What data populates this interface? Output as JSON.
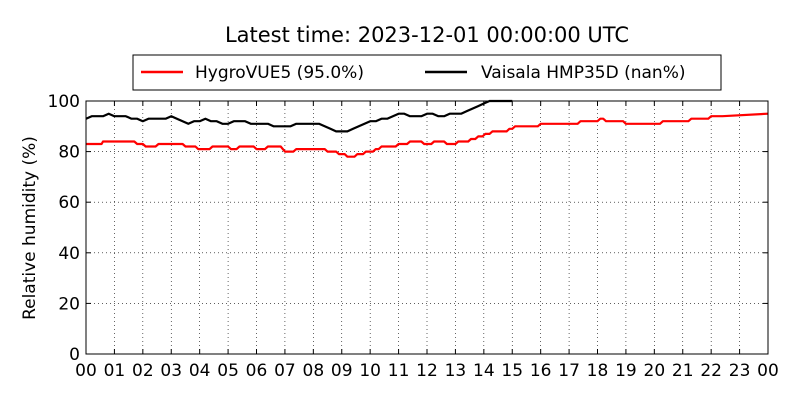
{
  "chart_data": {
    "type": "line",
    "title": "Latest time: 2023-12-01 00:00:00 UTC",
    "xlabel": "",
    "ylabel": "Relative humidity (%)",
    "ylim": [
      0,
      100
    ],
    "xlim": [
      0,
      24
    ],
    "yticks": [
      "0",
      "20",
      "40",
      "60",
      "80",
      "100"
    ],
    "xticks": [
      "00",
      "01",
      "02",
      "03",
      "04",
      "05",
      "06",
      "07",
      "08",
      "09",
      "10",
      "11",
      "12",
      "13",
      "14",
      "15",
      "16",
      "17",
      "18",
      "19",
      "20",
      "21",
      "22",
      "23",
      "00"
    ],
    "grid": true,
    "legend_position": "top",
    "series": [
      {
        "name": "HygroVUE5 (95.0%)",
        "color": "#ff0000",
        "x": [
          0,
          0.1,
          0.55,
          0.6,
          1.7,
          1.8,
          2.0,
          2.1,
          2.45,
          2.55,
          2.95,
          3.0,
          3.4,
          3.5,
          3.85,
          3.95,
          4.35,
          4.45,
          5.0,
          5.1,
          5.3,
          5.4,
          5.9,
          6.0,
          6.3,
          6.4,
          6.85,
          7.0,
          7.3,
          7.4,
          7.9,
          8.0,
          8.4,
          8.5,
          8.8,
          8.9,
          9.1,
          9.2,
          9.45,
          9.55,
          9.75,
          9.85,
          10.1,
          10.2,
          10.3,
          10.4,
          10.9,
          11.0,
          11.3,
          11.4,
          11.8,
          11.9,
          12.15,
          12.25,
          12.6,
          12.7,
          13.0,
          13.1,
          13.45,
          13.55,
          13.7,
          13.8,
          13.95,
          14.05,
          14.2,
          14.3,
          14.5,
          14.6,
          14.8,
          14.9,
          15.0,
          15.1,
          15.4,
          15.5,
          15.9,
          16.0,
          16.5,
          16.6,
          16.9,
          17.0,
          17.3,
          17.4,
          17.7,
          17.8,
          18.0,
          18.1,
          18.2,
          18.3,
          18.9,
          19.0,
          19.3,
          19.4,
          19.8,
          19.9,
          20.2,
          20.3,
          20.8,
          20.9,
          21.2,
          21.3,
          21.9,
          22.0,
          22.3,
          22.4,
          24
        ],
        "values": [
          83,
          83,
          83,
          84,
          84,
          83,
          83,
          82,
          82,
          83,
          83,
          83,
          83,
          82,
          82,
          81,
          81,
          82,
          82,
          81,
          81,
          82,
          82,
          81,
          81,
          82,
          82,
          80,
          80,
          81,
          81,
          81,
          81,
          80,
          80,
          79,
          79,
          78,
          78,
          79,
          79,
          80,
          80,
          81,
          81,
          82,
          82,
          83,
          83,
          84,
          84,
          83,
          83,
          84,
          84,
          83,
          83,
          84,
          84,
          85,
          85,
          86,
          86,
          87,
          87,
          88,
          88,
          88,
          88,
          89,
          89,
          90,
          90,
          90,
          90,
          91,
          91,
          91,
          91,
          91,
          91,
          92,
          92,
          92,
          92,
          93,
          93,
          92,
          92,
          91,
          91,
          91,
          91,
          91,
          91,
          92,
          92,
          92,
          92,
          93,
          93,
          94,
          94,
          94,
          95
        ],
        "last_value": 95.0
      },
      {
        "name": "Vaisala HMP35D (nan%)",
        "color": "#000000",
        "x": [
          0,
          0.2,
          0.4,
          0.6,
          0.8,
          1.0,
          1.2,
          1.4,
          1.6,
          1.8,
          2.0,
          2.2,
          2.4,
          2.6,
          2.8,
          3.0,
          3.2,
          3.4,
          3.6,
          3.8,
          4.0,
          4.2,
          4.4,
          4.6,
          4.8,
          5.0,
          5.2,
          5.4,
          5.6,
          5.8,
          6.0,
          6.2,
          6.4,
          6.6,
          6.8,
          7.0,
          7.2,
          7.4,
          7.6,
          7.8,
          8.0,
          8.2,
          8.4,
          8.6,
          8.8,
          9.0,
          9.2,
          9.4,
          9.6,
          9.8,
          10.0,
          10.2,
          10.4,
          10.6,
          10.8,
          11.0,
          11.2,
          11.4,
          11.6,
          11.8,
          12.0,
          12.2,
          12.4,
          12.6,
          12.8,
          13.0,
          13.2,
          13.4,
          13.6,
          13.8,
          14.0,
          14.2,
          14.4,
          14.6,
          14.8,
          15.0
        ],
        "values": [
          93,
          94,
          94,
          94,
          95,
          94,
          94,
          94,
          93,
          93,
          92,
          93,
          93,
          93,
          93,
          94,
          93,
          92,
          91,
          92,
          92,
          93,
          92,
          92,
          91,
          91,
          92,
          92,
          92,
          91,
          91,
          91,
          91,
          90,
          90,
          90,
          90,
          91,
          91,
          91,
          91,
          91,
          90,
          89,
          88,
          88,
          88,
          89,
          90,
          91,
          92,
          92,
          93,
          93,
          94,
          95,
          95,
          94,
          94,
          94,
          95,
          95,
          94,
          94,
          95,
          95,
          95,
          96,
          97,
          98,
          99,
          100,
          100,
          100,
          100,
          100
        ]
      }
    ]
  }
}
